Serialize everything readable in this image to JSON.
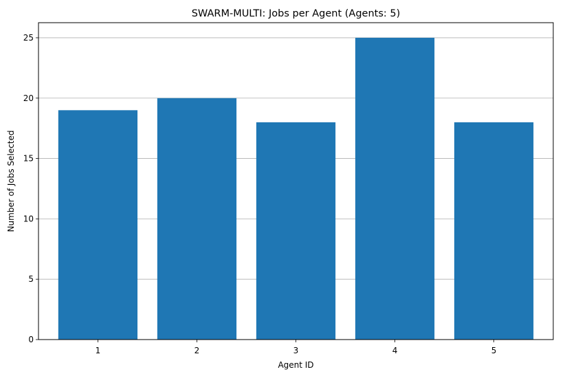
{
  "chart_data": {
    "type": "bar",
    "title": "SWARM-MULTI: Jobs per Agent (Agents: 5)",
    "xlabel": "Agent ID",
    "ylabel": "Number of Jobs Selected",
    "categories": [
      "1",
      "2",
      "3",
      "4",
      "5"
    ],
    "values": [
      19,
      20,
      18,
      25,
      18
    ],
    "ylim": [
      0,
      26.25
    ],
    "yticks": [
      0,
      5,
      10,
      15,
      20,
      25
    ],
    "grid": "y-major",
    "bar_color": "#1f77b4",
    "grid_color": "#b0b0b0"
  }
}
